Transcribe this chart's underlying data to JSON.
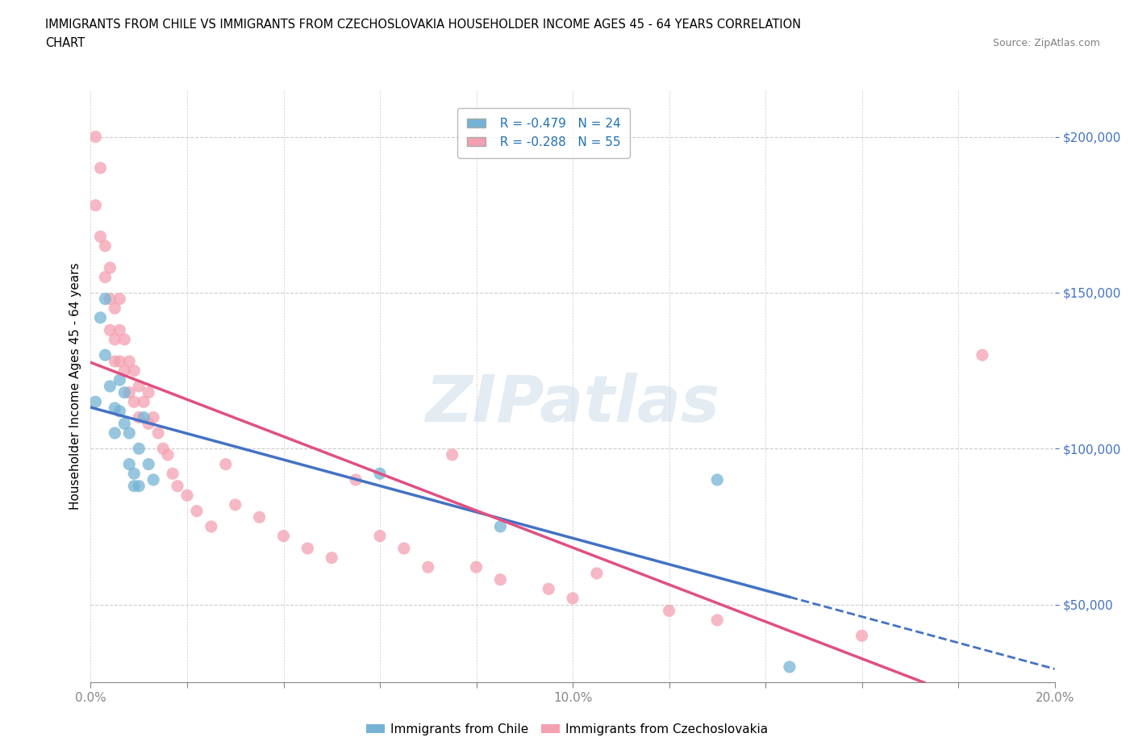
{
  "title_line1": "IMMIGRANTS FROM CHILE VS IMMIGRANTS FROM CZECHOSLOVAKIA HOUSEHOLDER INCOME AGES 45 - 64 YEARS CORRELATION",
  "title_line2": "CHART",
  "source": "Source: ZipAtlas.com",
  "ylabel": "Householder Income Ages 45 - 64 years",
  "xmin": 0.0,
  "xmax": 0.2,
  "ymin": 25000,
  "ymax": 215000,
  "watermark_text": "ZIPatlas",
  "chile_R": -0.479,
  "chile_N": 24,
  "czech_R": -0.288,
  "czech_N": 55,
  "chile_color": "#92c5de",
  "czech_color": "#f4a582",
  "chile_color_hex": "#74b3d4",
  "czech_color_hex": "#f4a0b0",
  "chile_line_color": "#4472c4",
  "czech_line_color": "#e05080",
  "chile_x": [
    0.001,
    0.002,
    0.003,
    0.003,
    0.004,
    0.005,
    0.005,
    0.006,
    0.006,
    0.007,
    0.007,
    0.008,
    0.008,
    0.009,
    0.009,
    0.01,
    0.01,
    0.011,
    0.012,
    0.013,
    0.06,
    0.085,
    0.13,
    0.145
  ],
  "chile_y": [
    115000,
    142000,
    148000,
    130000,
    120000,
    113000,
    105000,
    122000,
    112000,
    118000,
    108000,
    105000,
    95000,
    92000,
    88000,
    100000,
    88000,
    110000,
    95000,
    90000,
    92000,
    75000,
    90000,
    30000
  ],
  "czech_x": [
    0.001,
    0.001,
    0.002,
    0.002,
    0.003,
    0.003,
    0.004,
    0.004,
    0.004,
    0.005,
    0.005,
    0.005,
    0.006,
    0.006,
    0.006,
    0.007,
    0.007,
    0.008,
    0.008,
    0.009,
    0.009,
    0.01,
    0.01,
    0.011,
    0.012,
    0.012,
    0.013,
    0.014,
    0.015,
    0.016,
    0.017,
    0.018,
    0.02,
    0.022,
    0.025,
    0.028,
    0.03,
    0.035,
    0.04,
    0.045,
    0.05,
    0.055,
    0.06,
    0.065,
    0.07,
    0.075,
    0.08,
    0.085,
    0.095,
    0.1,
    0.105,
    0.12,
    0.13,
    0.16,
    0.185
  ],
  "czech_y": [
    200000,
    178000,
    190000,
    168000,
    165000,
    155000,
    158000,
    148000,
    138000,
    145000,
    135000,
    128000,
    148000,
    138000,
    128000,
    135000,
    125000,
    128000,
    118000,
    125000,
    115000,
    120000,
    110000,
    115000,
    108000,
    118000,
    110000,
    105000,
    100000,
    98000,
    92000,
    88000,
    85000,
    80000,
    75000,
    95000,
    82000,
    78000,
    72000,
    68000,
    65000,
    90000,
    72000,
    68000,
    62000,
    98000,
    62000,
    58000,
    55000,
    52000,
    60000,
    48000,
    45000,
    40000,
    130000
  ],
  "yticks": [
    50000,
    100000,
    150000,
    200000
  ],
  "ytick_labels": [
    "$50,000",
    "$100,000",
    "$150,000",
    "$200,000"
  ],
  "xticks": [
    0.0,
    0.02,
    0.04,
    0.06,
    0.08,
    0.1,
    0.12,
    0.14,
    0.16,
    0.18,
    0.2
  ],
  "xtick_labels": [
    "0.0%",
    "",
    "",
    "",
    "",
    "10.0%",
    "",
    "",
    "",
    "",
    "20.0%"
  ],
  "grid_yticks": [
    50000,
    100000,
    150000,
    200000
  ],
  "grid_color": "#cccccc",
  "bg_color": "#ffffff",
  "tick_color": "#4472c4",
  "axis_color": "#888888"
}
